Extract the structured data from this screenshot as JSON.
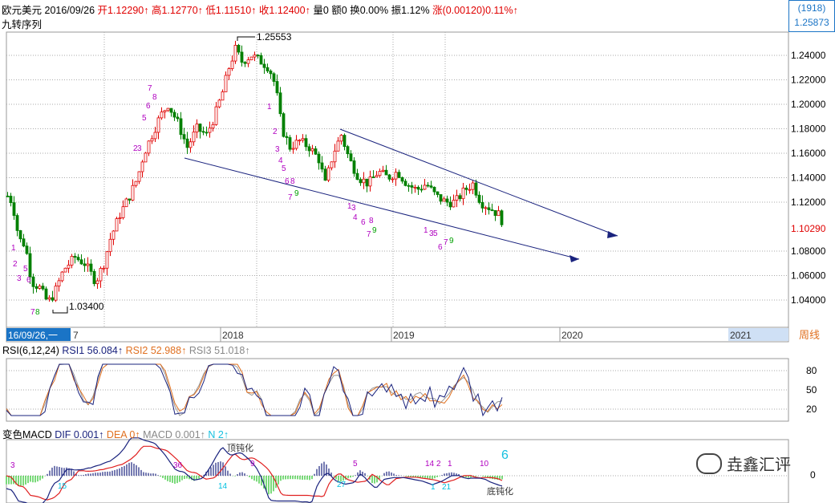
{
  "header": {
    "symbol": "欧元美元",
    "date": "2016/09/26",
    "open": "开1.12290↑",
    "high": "高1.12770↑",
    "low": "低1.11510↑",
    "close": "收1.12400↑",
    "volume": "量0",
    "amount": "额0",
    "turnover": "换0.00%",
    "amplitude": "振1.12%",
    "change": "涨(0.00120)0.11%↑",
    "indicator": "九转序列"
  },
  "code_box": {
    "code": "(1918)",
    "price": "1.25873"
  },
  "price_axis": {
    "ticks": [
      "1.24000",
      "1.22000",
      "1.20000",
      "1.18000",
      "1.16000",
      "1.14000",
      "1.12000",
      "1.10290",
      "1.08000",
      "1.06000",
      "1.04000"
    ],
    "last_price": "1.10290",
    "high_label": "1.25553",
    "low_label": "1.03400"
  },
  "time_axis": {
    "cursor_label": "16/09/26,一",
    "labels": [
      "7",
      "2018",
      "2019",
      "2020",
      "2021"
    ],
    "period": "周线"
  },
  "rsi": {
    "title": "RSI(6,12,24)",
    "rsi1": "RSI1 56.084↑",
    "rsi2": "RSI2 52.988↑",
    "rsi3": "RSI3 51.018↑",
    "ticks": [
      "80",
      "50",
      "20"
    ]
  },
  "macd": {
    "title": "变色MACD",
    "dif": "DIF 0.001↑",
    "dea": "DEA 0↑",
    "macd": "MACD 0.001↑",
    "n": "N 2↑",
    "top_label": "顶钝化",
    "bottom_label": "底钝化",
    "count": "6",
    "zero": "0",
    "numbers": [
      "3",
      "36",
      "9",
      "5",
      "14",
      "2",
      "1",
      "10",
      "15",
      "14",
      "27",
      "1",
      "21"
    ]
  },
  "watermark": "垚鑫汇评",
  "colors": {
    "up": "#e00000",
    "down": "#008000",
    "blue": "#1a237e",
    "magenta": "#b000c0",
    "green": "#00a000",
    "axis_blue": "#1a74c6"
  },
  "chart_data": {
    "type": "candlestick",
    "title": "欧元美元 周线",
    "ylim": [
      1.03,
      1.26
    ],
    "high": 1.25553,
    "low": 1.034,
    "last": 1.1029,
    "x_labels": [
      "2018",
      "2019",
      "2020",
      "2021"
    ],
    "rsi_levels": [
      80,
      50,
      20
    ],
    "rsi_values": [
      56.084,
      52.988,
      51.018
    ]
  }
}
